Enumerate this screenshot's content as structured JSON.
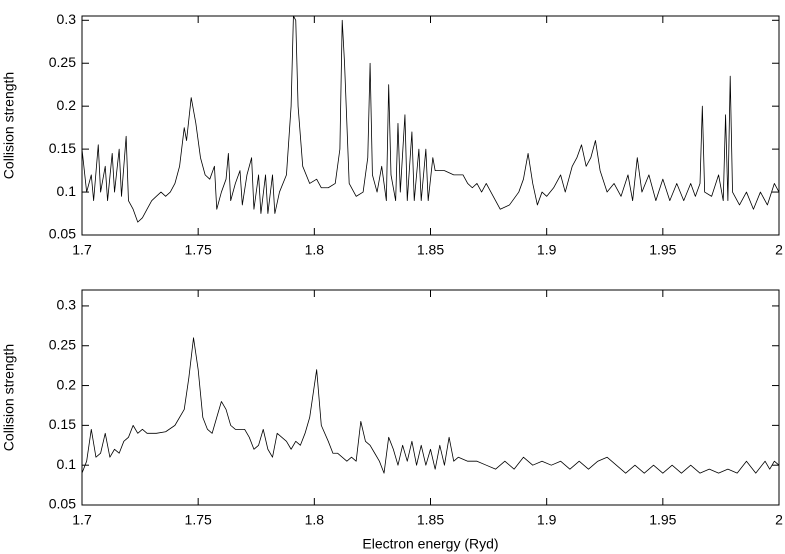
{
  "chart_data": [
    {
      "type": "line",
      "ylabel": "Collision strength",
      "color": "#000000",
      "xlim": [
        1.7,
        2
      ],
      "xticks": [
        1.7,
        1.75,
        1.8,
        1.85,
        1.9,
        1.95,
        2
      ],
      "ylim": [
        0.05,
        0.305
      ],
      "yticks": [
        0.05,
        0.1,
        0.15,
        0.2,
        0.25,
        0.3
      ],
      "grid": false,
      "x": [
        1.7,
        1.702,
        1.704,
        1.705,
        1.707,
        1.708,
        1.71,
        1.711,
        1.713,
        1.714,
        1.716,
        1.717,
        1.719,
        1.72,
        1.722,
        1.724,
        1.726,
        1.728,
        1.73,
        1.732,
        1.734,
        1.736,
        1.738,
        1.74,
        1.742,
        1.744,
        1.745,
        1.747,
        1.749,
        1.751,
        1.753,
        1.755,
        1.757,
        1.758,
        1.76,
        1.762,
        1.763,
        1.764,
        1.766,
        1.768,
        1.769,
        1.771,
        1.773,
        1.774,
        1.776,
        1.777,
        1.779,
        1.78,
        1.782,
        1.783,
        1.785,
        1.788,
        1.79,
        1.791,
        1.792,
        1.793,
        1.795,
        1.798,
        1.801,
        1.803,
        1.806,
        1.809,
        1.811,
        1.812,
        1.813,
        1.815,
        1.818,
        1.821,
        1.823,
        1.824,
        1.825,
        1.827,
        1.829,
        1.831,
        1.832,
        1.833,
        1.835,
        1.836,
        1.837,
        1.839,
        1.84,
        1.842,
        1.843,
        1.845,
        1.846,
        1.848,
        1.849,
        1.851,
        1.852,
        1.856,
        1.86,
        1.864,
        1.866,
        1.868,
        1.87,
        1.872,
        1.874,
        1.876,
        1.88,
        1.884,
        1.888,
        1.89,
        1.892,
        1.894,
        1.896,
        1.898,
        1.9,
        1.903,
        1.906,
        1.908,
        1.911,
        1.913,
        1.915,
        1.917,
        1.919,
        1.921,
        1.923,
        1.926,
        1.929,
        1.932,
        1.935,
        1.937,
        1.939,
        1.941,
        1.944,
        1.947,
        1.95,
        1.953,
        1.956,
        1.959,
        1.962,
        1.964,
        1.966,
        1.967,
        1.968,
        1.971,
        1.974,
        1.976,
        1.977,
        1.978,
        1.979,
        1.98,
        1.983,
        1.986,
        1.989,
        1.992,
        1.995,
        1.998,
        2.0
      ],
      "values": [
        0.15,
        0.1,
        0.12,
        0.09,
        0.155,
        0.1,
        0.13,
        0.09,
        0.145,
        0.1,
        0.15,
        0.095,
        0.165,
        0.09,
        0.08,
        0.065,
        0.07,
        0.08,
        0.09,
        0.095,
        0.1,
        0.095,
        0.1,
        0.11,
        0.13,
        0.175,
        0.16,
        0.21,
        0.18,
        0.14,
        0.12,
        0.115,
        0.13,
        0.08,
        0.1,
        0.115,
        0.145,
        0.09,
        0.11,
        0.125,
        0.085,
        0.12,
        0.14,
        0.08,
        0.12,
        0.075,
        0.12,
        0.075,
        0.12,
        0.075,
        0.1,
        0.12,
        0.2,
        0.305,
        0.3,
        0.2,
        0.13,
        0.11,
        0.115,
        0.105,
        0.105,
        0.11,
        0.15,
        0.3,
        0.25,
        0.11,
        0.095,
        0.1,
        0.14,
        0.25,
        0.12,
        0.1,
        0.13,
        0.09,
        0.225,
        0.12,
        0.09,
        0.18,
        0.1,
        0.19,
        0.09,
        0.17,
        0.09,
        0.15,
        0.09,
        0.15,
        0.09,
        0.14,
        0.125,
        0.125,
        0.12,
        0.12,
        0.11,
        0.105,
        0.11,
        0.1,
        0.11,
        0.1,
        0.08,
        0.085,
        0.1,
        0.115,
        0.145,
        0.11,
        0.085,
        0.1,
        0.095,
        0.105,
        0.12,
        0.1,
        0.13,
        0.14,
        0.155,
        0.13,
        0.14,
        0.16,
        0.125,
        0.1,
        0.11,
        0.095,
        0.12,
        0.09,
        0.14,
        0.1,
        0.12,
        0.09,
        0.115,
        0.09,
        0.11,
        0.09,
        0.11,
        0.095,
        0.11,
        0.2,
        0.1,
        0.095,
        0.12,
        0.09,
        0.19,
        0.09,
        0.235,
        0.1,
        0.085,
        0.1,
        0.08,
        0.1,
        0.085,
        0.11,
        0.1
      ]
    },
    {
      "type": "line",
      "xlabel": "Electron energy (Ryd)",
      "ylabel": "Collision strength",
      "color": "#000000",
      "xlim": [
        1.7,
        2
      ],
      "xticks": [
        1.7,
        1.75,
        1.8,
        1.85,
        1.9,
        1.95,
        2
      ],
      "ylim": [
        0.05,
        0.32
      ],
      "yticks": [
        0.05,
        0.1,
        0.15,
        0.2,
        0.25,
        0.3
      ],
      "grid": false,
      "x": [
        1.7,
        1.702,
        1.704,
        1.706,
        1.708,
        1.71,
        1.712,
        1.714,
        1.716,
        1.718,
        1.72,
        1.722,
        1.724,
        1.726,
        1.728,
        1.732,
        1.736,
        1.74,
        1.744,
        1.746,
        1.748,
        1.75,
        1.752,
        1.754,
        1.756,
        1.758,
        1.76,
        1.762,
        1.764,
        1.766,
        1.77,
        1.772,
        1.774,
        1.776,
        1.778,
        1.78,
        1.782,
        1.784,
        1.786,
        1.788,
        1.79,
        1.792,
        1.794,
        1.796,
        1.798,
        1.8,
        1.801,
        1.803,
        1.806,
        1.808,
        1.81,
        1.812,
        1.814,
        1.816,
        1.818,
        1.82,
        1.822,
        1.824,
        1.826,
        1.828,
        1.83,
        1.832,
        1.834,
        1.836,
        1.838,
        1.84,
        1.842,
        1.844,
        1.846,
        1.848,
        1.85,
        1.852,
        1.854,
        1.856,
        1.858,
        1.86,
        1.862,
        1.866,
        1.87,
        1.874,
        1.878,
        1.882,
        1.886,
        1.89,
        1.894,
        1.898,
        1.902,
        1.906,
        1.91,
        1.914,
        1.918,
        1.922,
        1.926,
        1.93,
        1.934,
        1.938,
        1.942,
        1.946,
        1.95,
        1.954,
        1.958,
        1.962,
        1.966,
        1.97,
        1.974,
        1.978,
        1.982,
        1.986,
        1.99,
        1.994,
        1.996,
        1.998,
        2.0
      ],
      "values": [
        0.09,
        0.105,
        0.145,
        0.11,
        0.115,
        0.14,
        0.11,
        0.12,
        0.115,
        0.13,
        0.135,
        0.15,
        0.14,
        0.145,
        0.14,
        0.14,
        0.142,
        0.15,
        0.17,
        0.21,
        0.26,
        0.22,
        0.16,
        0.145,
        0.14,
        0.16,
        0.18,
        0.17,
        0.15,
        0.145,
        0.145,
        0.135,
        0.12,
        0.125,
        0.145,
        0.12,
        0.11,
        0.14,
        0.135,
        0.13,
        0.12,
        0.13,
        0.125,
        0.14,
        0.16,
        0.2,
        0.22,
        0.15,
        0.13,
        0.115,
        0.115,
        0.11,
        0.105,
        0.11,
        0.105,
        0.155,
        0.13,
        0.125,
        0.115,
        0.105,
        0.09,
        0.135,
        0.12,
        0.1,
        0.125,
        0.105,
        0.13,
        0.1,
        0.125,
        0.1,
        0.12,
        0.095,
        0.125,
        0.1,
        0.135,
        0.105,
        0.11,
        0.105,
        0.105,
        0.1,
        0.095,
        0.105,
        0.095,
        0.11,
        0.1,
        0.105,
        0.1,
        0.105,
        0.095,
        0.105,
        0.095,
        0.105,
        0.11,
        0.1,
        0.09,
        0.1,
        0.09,
        0.1,
        0.09,
        0.1,
        0.09,
        0.1,
        0.09,
        0.095,
        0.09,
        0.095,
        0.09,
        0.105,
        0.09,
        0.105,
        0.095,
        0.105,
        0.1
      ]
    }
  ]
}
